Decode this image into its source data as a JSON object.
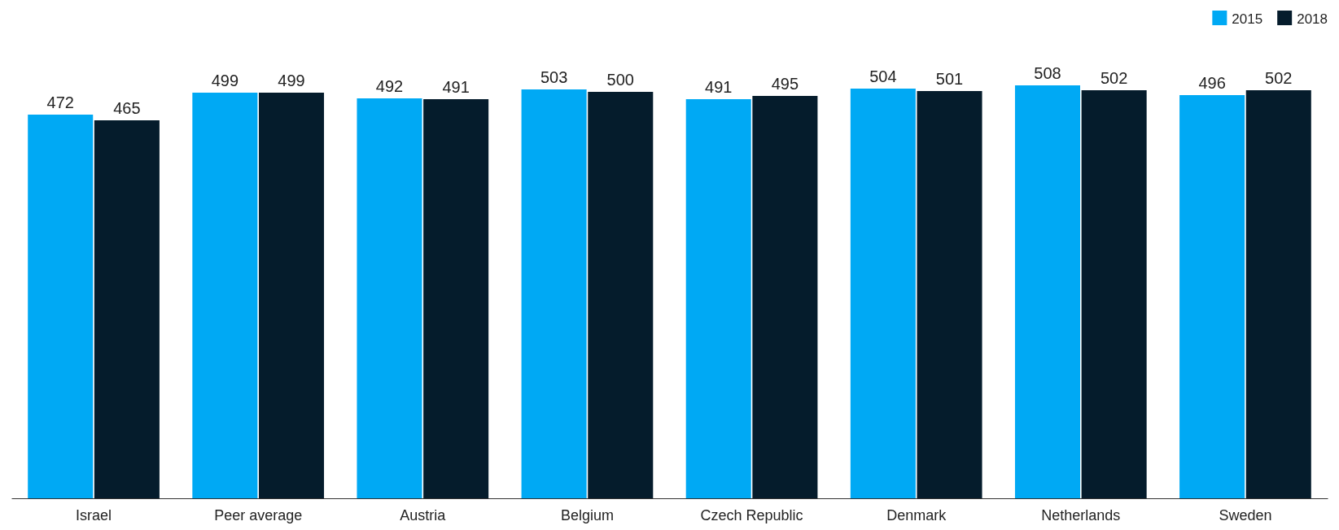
{
  "chart_data": {
    "type": "bar",
    "categories": [
      "Israel",
      "Peer average",
      "Austria",
      "Belgium",
      "Czech Republic",
      "Denmark",
      "Netherlands",
      "Sweden"
    ],
    "series": [
      {
        "name": "2015",
        "color": "#00a9f4",
        "values": [
          472,
          499,
          492,
          503,
          491,
          504,
          508,
          496
        ]
      },
      {
        "name": "2018",
        "color": "#051c2c",
        "values": [
          465,
          499,
          491,
          500,
          495,
          501,
          502,
          502
        ]
      }
    ],
    "data_labels": true,
    "legend": "top right",
    "grid": false
  }
}
